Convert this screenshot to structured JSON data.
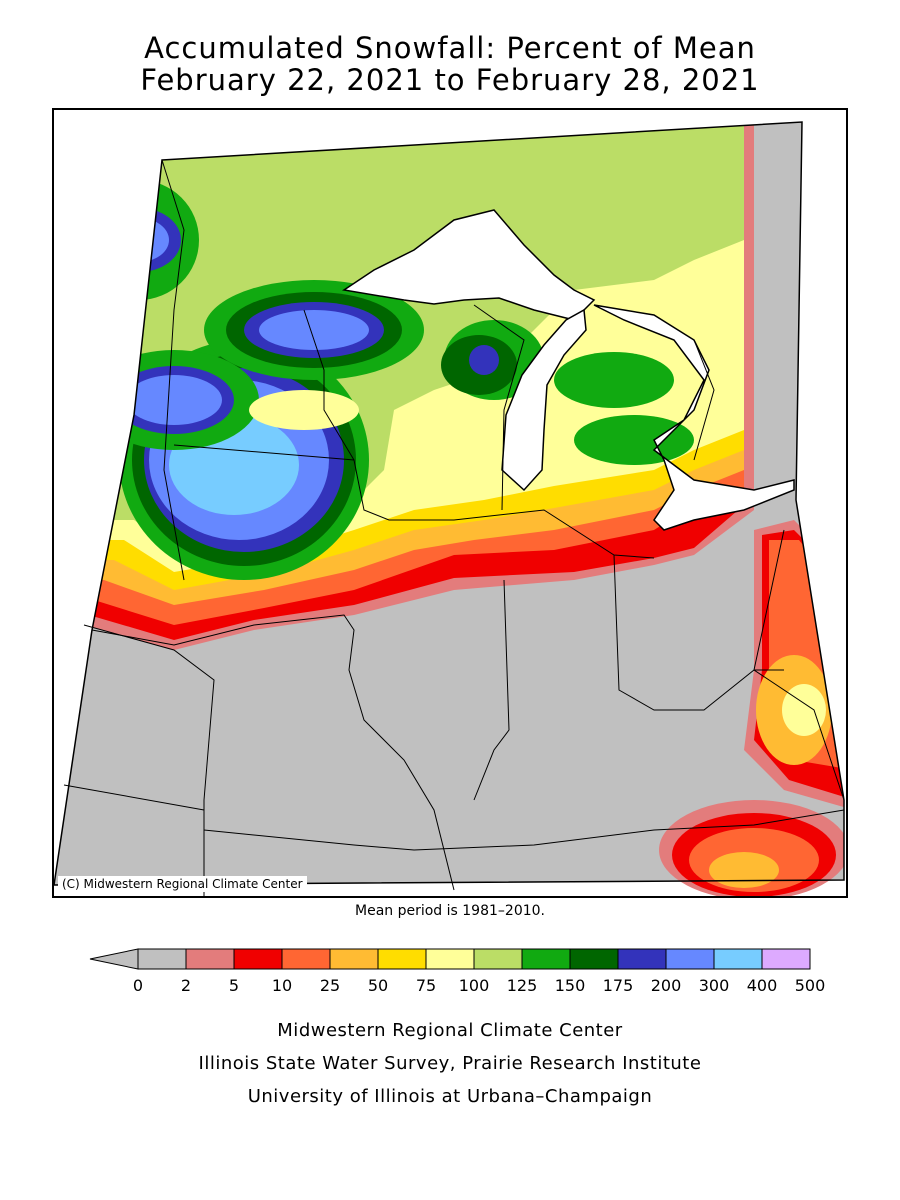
{
  "title": {
    "line1": "Accumulated Snowfall: Percent of Mean",
    "line2": "February 22, 2021 to February 28, 2021"
  },
  "map": {
    "copyright": "(C) Midwestern Regional Climate Center",
    "no_data_color": "#c0c0c0",
    "line_color": "#000000"
  },
  "mean_note": "Mean period is 1981–2010.",
  "legend": {
    "underflow_color": "#c0c0c0",
    "colors": [
      "#c0c0c0",
      "#e37c7c",
      "#f00000",
      "#ff6633",
      "#ffbb33",
      "#ffdd00",
      "#ffff99",
      "#bbdd66",
      "#11aa11",
      "#006600",
      "#3333bb",
      "#6688ff",
      "#77ccff",
      "#ddaaff"
    ],
    "labels": [
      "0",
      "2",
      "5",
      "10",
      "25",
      "50",
      "75",
      "100",
      "125",
      "150",
      "175",
      "200",
      "300",
      "400",
      "500"
    ]
  },
  "credits": {
    "line1": "Midwestern Regional Climate Center",
    "line2": "Illinois State Water Survey, Prairie Research Institute",
    "line3": "University of Illinois at Urbana–Champaign"
  }
}
